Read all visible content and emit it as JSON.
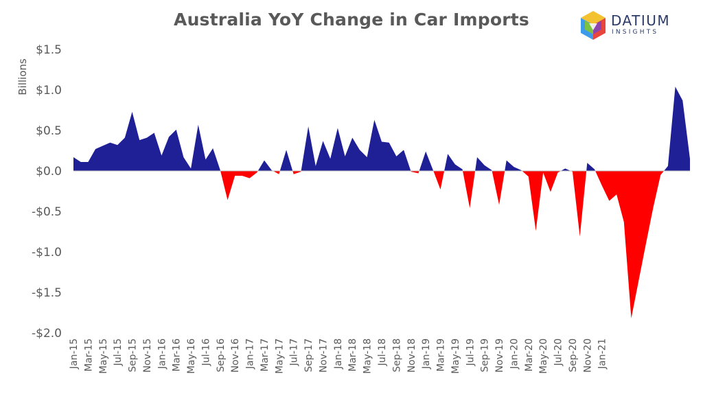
{
  "title": "Australia YoY Change in Car Imports",
  "logo": {
    "word": "DATIUM",
    "sub": "INSIGHTS"
  },
  "colors": {
    "positive": "#1f1f96",
    "negative": "#ff0000",
    "text": "#595959"
  },
  "chart_data": {
    "type": "area",
    "title": "Australia YoY Change in Car Imports",
    "ylabel": "Billions",
    "xlabel": "",
    "ylim": [
      -2.0,
      1.5
    ],
    "y_ticks": [
      1.5,
      1.0,
      0.5,
      0.0,
      -0.5,
      -1.0,
      -1.5,
      -2.0
    ],
    "y_tick_labels": [
      "$1.5",
      "$1.0",
      "$0.5",
      "$0.0",
      "-$0.5",
      "-$1.0",
      "-$1.5",
      "-$2.0"
    ],
    "x_start": "Jan-15",
    "x_tick_labels": [
      "Jan-15",
      "Mar-15",
      "May-15",
      "Jul-15",
      "Sep-15",
      "Nov-15",
      "Jan-16",
      "Mar-16",
      "May-16",
      "Jul-16",
      "Sep-16",
      "Nov-16",
      "Jan-17",
      "Mar-17",
      "May-17",
      "Jul-17",
      "Sep-17",
      "Nov-17",
      "Jan-18",
      "Mar-18",
      "May-18",
      "Jul-18",
      "Sep-18",
      "Nov-18",
      "Jan-19",
      "Mar-19",
      "May-19",
      "Jul-19",
      "Sep-19",
      "Nov-19",
      "Jan-20",
      "Mar-20",
      "May-20",
      "Jul-20",
      "Sep-20",
      "Nov-20",
      "Jan-21"
    ],
    "grid": false,
    "legend": "none",
    "values": [
      0.17,
      0.11,
      0.11,
      0.27,
      0.31,
      0.35,
      0.32,
      0.41,
      0.73,
      0.38,
      0.41,
      0.47,
      0.19,
      0.42,
      0.51,
      0.17,
      0.03,
      0.57,
      0.14,
      0.28,
      0.01,
      -0.36,
      -0.06,
      -0.06,
      -0.09,
      -0.02,
      0.13,
      0.01,
      -0.04,
      0.26,
      -0.04,
      -0.01,
      0.55,
      0.06,
      0.37,
      0.15,
      0.53,
      0.18,
      0.41,
      0.26,
      0.17,
      0.63,
      0.36,
      0.35,
      0.18,
      0.26,
      -0.01,
      -0.03,
      0.24,
      0.01,
      -0.23,
      0.21,
      0.08,
      0.02,
      -0.46,
      0.17,
      0.07,
      0.01,
      -0.42,
      0.13,
      0.05,
      0.01,
      -0.07,
      -0.74,
      -0.02,
      -0.26,
      -0.02,
      0.03,
      -0.01,
      -0.81,
      0.1,
      0.02,
      -0.18,
      -0.37,
      -0.29,
      -0.63,
      -1.82,
      -1.36,
      -0.9,
      -0.45,
      -0.05,
      0.06,
      1.04,
      0.87,
      0.15
    ]
  }
}
